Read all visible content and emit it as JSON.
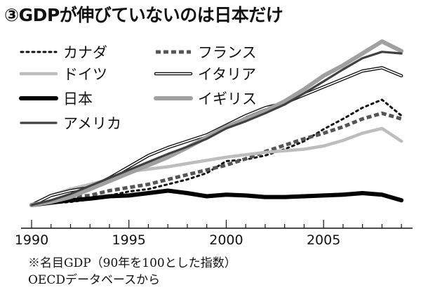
{
  "title": "③GDPが伸びていないのは日本だけ",
  "chart_data": {
    "type": "line",
    "x": [
      1990,
      1991,
      1992,
      1993,
      1994,
      1995,
      1996,
      1997,
      1998,
      1999,
      2000,
      2001,
      2002,
      2003,
      2004,
      2005,
      2006,
      2007,
      2008,
      2009
    ],
    "xticks": [
      1990,
      1995,
      2000,
      2005
    ],
    "xlim": [
      1990,
      2009.5
    ],
    "ylim": [
      80,
      320
    ],
    "baseline": 100,
    "series": [
      {
        "name": "カナダ",
        "style": "dotted",
        "color": "#111111",
        "values": [
          100,
          102,
          104,
          107,
          112,
          117,
          120,
          126,
          132,
          140,
          155,
          157,
          162,
          170,
          180,
          195,
          208,
          222,
          232,
          212
        ]
      },
      {
        "name": "フランス",
        "style": "dashed",
        "color": "#555555",
        "values": [
          100,
          105,
          110,
          112,
          118,
          122,
          126,
          132,
          138,
          144,
          150,
          158,
          167,
          175,
          183,
          190,
          198,
          208,
          215,
          208
        ]
      },
      {
        "name": "ドイツ",
        "style": "light",
        "color": "#bbbbbb",
        "values": [
          100,
          112,
          120,
          126,
          132,
          142,
          145,
          148,
          152,
          156,
          160,
          163,
          166,
          168,
          170,
          174,
          181,
          190,
          196,
          180
        ]
      },
      {
        "name": "イタリア",
        "style": "double",
        "color": "#111111",
        "values": [
          100,
          112,
          118,
          122,
          134,
          148,
          162,
          172,
          180,
          188,
          200,
          212,
          222,
          228,
          238,
          248,
          258,
          268,
          272,
          262
        ]
      },
      {
        "name": "日本",
        "style": "thick",
        "color": "#000000",
        "values": [
          100,
          103,
          106,
          108,
          111,
          112,
          115,
          118,
          115,
          111,
          113,
          112,
          110,
          110,
          111,
          112,
          113,
          115,
          113,
          106
        ]
      },
      {
        "name": "イギリス",
        "style": "gray",
        "color": "#999999",
        "values": [
          100,
          104,
          110,
          120,
          130,
          140,
          150,
          160,
          172,
          185,
          198,
          208,
          218,
          230,
          245,
          262,
          275,
          290,
          305,
          293
        ]
      },
      {
        "name": "アメリカ",
        "style": "medium",
        "color": "#444444",
        "values": [
          100,
          106,
          114,
          124,
          134,
          144,
          154,
          164,
          173,
          183,
          196,
          205,
          215,
          226,
          240,
          255,
          270,
          284,
          292,
          290
        ]
      }
    ]
  },
  "notes": {
    "line1": "※名目GDP（90年を100とした指数）",
    "line2": "OECDデータベースから"
  }
}
